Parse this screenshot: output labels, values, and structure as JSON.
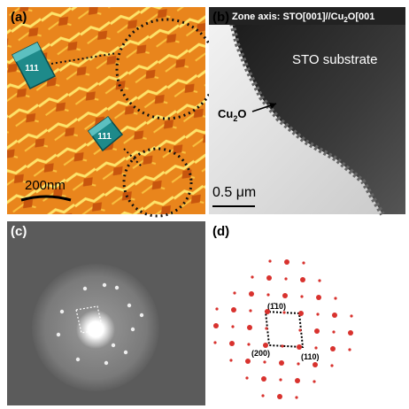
{
  "panel_a": {
    "label": "(a)",
    "crystal_1": "111",
    "crystal_2": "111",
    "scale_bar": "200nm"
  },
  "panel_b": {
    "label": "(b)",
    "zone_axis": {
      "prefix": "Zone axis: STO[001]//Cu",
      "sub": "2",
      "suffix": "O[001"
    },
    "substrate": "STO substrate",
    "film": {
      "prefix": "Cu",
      "sub": "2",
      "suffix": "O"
    },
    "scale_bar": "0.5 μm"
  },
  "panel_c": {
    "label": "(c)"
  },
  "panel_d": {
    "label": "(d)",
    "spot_1": "(1̄10)",
    "spot_2": "(200)",
    "spot_3": "(110)"
  }
}
